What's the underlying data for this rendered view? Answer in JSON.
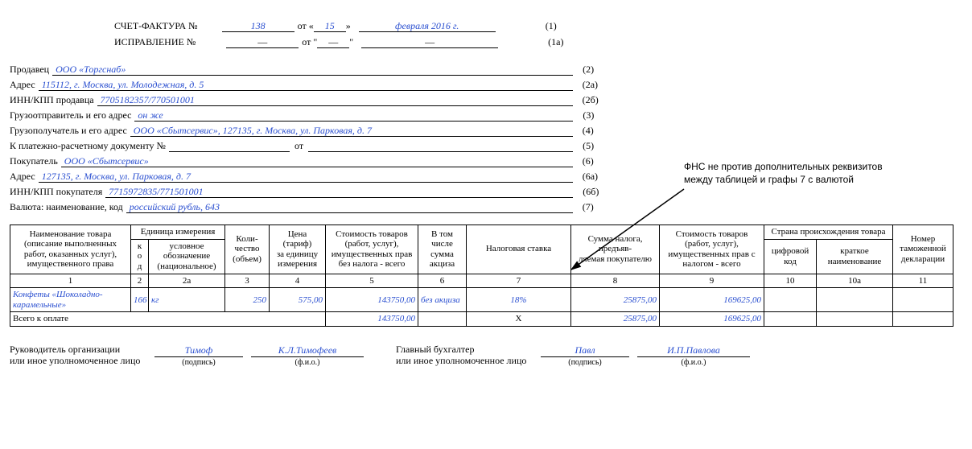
{
  "header": {
    "invoice_label": "СЧЕТ-ФАКТУРА №",
    "invoice_number": "138",
    "ot1": "от «",
    "day": "15",
    "close_q": "»",
    "month_year": "февраля 2016 г.",
    "line1_code": "(1)",
    "correction_label": "ИСПРАВЛЕНИЕ №",
    "corr_num": "—",
    "ot2": "от \"",
    "corr_day": "—",
    "close_q2": "\"",
    "corr_my": "—",
    "line2_code": "(1а)"
  },
  "meta": [
    {
      "label": "Продавец",
      "value": "ООО «Торгснаб»",
      "code": "(2)"
    },
    {
      "label": "Адрес",
      "value": "115112, г. Москва, ул. Молодежная, д. 5",
      "code": "(2а)"
    },
    {
      "label": "ИНН/КПП продавца",
      "value": "7705182357/770501001",
      "code": "(2б)"
    },
    {
      "label": "Грузоотправитель и его адрес",
      "value": "он же",
      "code": "(3)"
    },
    {
      "label": "Грузополучатель и его адрес",
      "value": "ООО «Сбытсервис», 127135, г. Москва, ул. Парковая, д. 7",
      "code": "(4)"
    },
    {
      "label": "К платежно-расчетному документу №",
      "value": "",
      "mid": "от",
      "value2": "",
      "code": "(5)"
    },
    {
      "label": "Покупатель",
      "value": "ООО «Сбытсервис»",
      "code": "(6)"
    },
    {
      "label": "Адрес",
      "value": "127135, г. Москва, ул. Парковая, д. 7",
      "code": "(6а)"
    },
    {
      "label": "ИНН/КПП покупателя",
      "value": "7715972835/771501001",
      "code": "(6б)"
    },
    {
      "label": "Валюта: наименование, код",
      "value": "российский рубль, 643",
      "code": "(7)"
    }
  ],
  "table": {
    "headers": {
      "c1": "Наименование товара (описание выполненных работ, оказанных услуг), имущественного права",
      "c_unit_group": "Единица измерения",
      "c2": "к\nо\nд",
      "c2a": "условное обозначение (национальное)",
      "c3": "Коли-\nчество\n(объем)",
      "c4": "Цена\n(тариф)",
      "c4_sub": "за единицу измерения",
      "c5": "Стоимость товаров (работ, услуг), имущественных прав без налога - всего",
      "c6": "В том числе сумма акциза",
      "c7": "Налоговая ставка",
      "c8": "Сумма налога, предъяв-\nляемая покупателю",
      "c9": "Стоимость товаров (работ, услуг), имущественных прав с налогом - всего",
      "c_origin_group": "Страна происхождения товара",
      "c10": "цифровой код",
      "c10a": "краткое наименование",
      "c11": "Номер таможенной декларации"
    },
    "nums": [
      "1",
      "2",
      "2а",
      "3",
      "4",
      "5",
      "6",
      "7",
      "8",
      "9",
      "10",
      "10а",
      "11"
    ],
    "rows": [
      {
        "name": "Конфеты «Шоколадно-карамельные»",
        "code": "166",
        "unit": "кг",
        "qty": "250",
        "price": "575,00",
        "cost_no_tax": "143750,00",
        "excise": "без акциза",
        "rate": "18%",
        "tax_sum": "25875,00",
        "cost_with_tax": "169625,00",
        "origin_code": "",
        "origin_name": "",
        "decl": ""
      }
    ],
    "total_label": "Всего к оплате",
    "totals": {
      "cost_no_tax": "143750,00",
      "rate": "Х",
      "tax_sum": "25875,00",
      "cost_with_tax": "169625,00"
    }
  },
  "sign": {
    "left_title1": "Руководитель организации",
    "left_title2": "или иное уполномоченное лицо",
    "left_sig": "Тимоф",
    "left_name": "К.Л.Тимофеев",
    "right_title1": "Главный бухгалтер",
    "right_title2": "или иное уполномоченное лицо",
    "right_sig": "Павл",
    "right_name": "И.П.Павлова",
    "sub_sig": "(подпись)",
    "sub_name": "(ф.и.о.)"
  },
  "annotation": {
    "text1": "ФНС не против дополнительных реквизитов",
    "text2": "между таблицей и графы 7 с валютой"
  },
  "colors": {
    "fill": "#2a4fd0",
    "line": "#000000",
    "bg": "#ffffff"
  }
}
